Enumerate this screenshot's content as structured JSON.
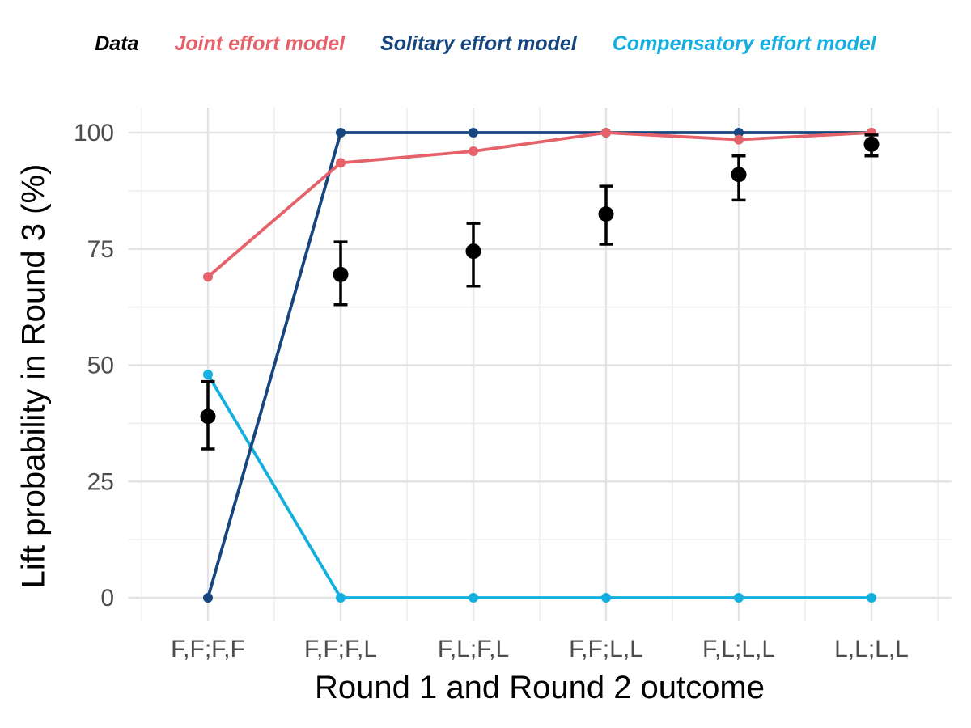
{
  "chart_data": {
    "type": "line",
    "title": "",
    "xlabel": "Round 1 and Round 2 outcome",
    "ylabel": "Lift probability in Round 3 (%)",
    "categories": [
      "F,F;F,F",
      "F,F;F,L",
      "F,L;F,L",
      "F,F;L,L",
      "F,L;L,L",
      "L,L;L,L"
    ],
    "yticks": [
      0,
      25,
      50,
      75,
      100
    ],
    "ytick_labels": [
      "0",
      "25",
      "50",
      "75",
      "100"
    ],
    "ylim": [
      0,
      100
    ],
    "grid": {
      "major_color": "#e3e3e3",
      "minor_color": "#ededed",
      "minor_y_values": [
        12.5,
        37.5,
        62.5,
        87.5
      ],
      "vertical_minor": "midpoints"
    },
    "legend_position": "top-center",
    "axis_text_color": "#4d4d4d",
    "axis_title_color": "#000000",
    "series": [
      {
        "name": "Data",
        "style": "points_with_error_bars",
        "color": "#000000",
        "values": [
          39,
          69.5,
          74.5,
          82.5,
          91,
          97.5
        ],
        "ci_low": [
          32,
          63,
          67,
          76,
          85.5,
          95
        ],
        "ci_high": [
          46.5,
          76.5,
          80.5,
          88.5,
          95,
          99.5
        ]
      },
      {
        "name": "Joint effort model",
        "style": "line_with_points",
        "color": "#e5626a",
        "values": [
          69,
          93.5,
          96,
          100,
          98.5,
          100
        ]
      },
      {
        "name": "Solitary effort model",
        "style": "line_with_points",
        "color": "#17457d",
        "values": [
          0,
          100,
          100,
          100,
          100,
          100
        ]
      },
      {
        "name": "Compensatory effort model",
        "style": "line_with_points",
        "color": "#14afdf",
        "values": [
          48,
          0,
          0,
          0,
          0,
          0
        ]
      }
    ]
  }
}
